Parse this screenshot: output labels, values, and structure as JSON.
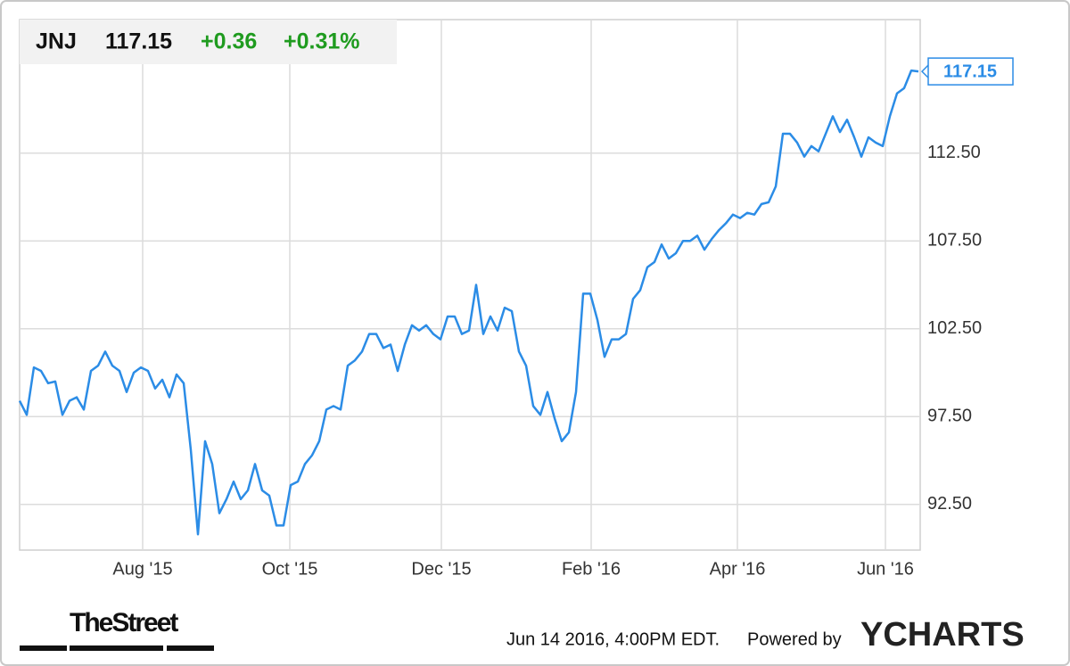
{
  "header": {
    "symbol": "JNJ",
    "price": "117.15",
    "change": "+0.36",
    "change_pct": "+0.31%"
  },
  "chart_data": {
    "type": "line",
    "color": "#2b8ce6",
    "grid": true,
    "values": [
      98.4,
      97.6,
      100.3,
      100.1,
      99.4,
      99.5,
      97.6,
      98.4,
      98.6,
      97.9,
      100.1,
      100.4,
      101.2,
      100.4,
      100.1,
      98.9,
      100.0,
      100.3,
      100.1,
      99.1,
      99.6,
      98.6,
      99.9,
      99.4,
      95.6,
      90.8,
      96.1,
      94.8,
      92.0,
      92.8,
      93.8,
      92.8,
      93.3,
      94.8,
      93.3,
      93.0,
      91.3,
      91.3,
      93.6,
      93.8,
      94.8,
      95.3,
      96.1,
      97.9,
      98.1,
      97.9,
      100.4,
      100.7,
      101.2,
      102.2,
      102.2,
      101.4,
      101.6,
      100.1,
      101.6,
      102.7,
      102.4,
      102.7,
      102.2,
      101.9,
      103.2,
      103.2,
      102.2,
      102.4,
      105.0,
      102.2,
      103.2,
      102.4,
      103.7,
      103.5,
      101.2,
      100.4,
      98.1,
      97.6,
      98.9,
      97.4,
      96.1,
      96.6,
      98.9,
      104.5,
      104.5,
      103.0,
      100.9,
      101.9,
      101.9,
      102.2,
      104.2,
      104.7,
      106.0,
      106.3,
      107.3,
      106.5,
      106.8,
      107.5,
      107.5,
      107.8,
      107.0,
      107.6,
      108.1,
      108.5,
      109.0,
      108.8,
      109.1,
      109.0,
      109.6,
      109.7,
      110.6,
      113.6,
      113.6,
      113.1,
      112.3,
      112.9,
      112.6,
      113.6,
      114.6,
      113.7,
      114.4,
      113.4,
      112.3,
      113.4,
      113.1,
      112.9,
      114.6,
      115.9,
      116.2,
      117.2,
      117.15
    ],
    "xlim": [
      0,
      126.25
    ],
    "xticks": [
      {
        "value": 17.25,
        "label": "Aug '15"
      },
      {
        "value": 37.875,
        "label": "Oct '15"
      },
      {
        "value": 59.125,
        "label": "Dec '15"
      },
      {
        "value": 80.125,
        "label": "Feb '16"
      },
      {
        "value": 100.625,
        "label": "Apr '16"
      },
      {
        "value": 121.375,
        "label": "Jun '16"
      }
    ],
    "ylim": [
      89.9,
      120.1
    ],
    "yticks": [
      {
        "value": 92.5,
        "label": "92.50"
      },
      {
        "value": 97.5,
        "label": "97.50"
      },
      {
        "value": 102.5,
        "label": "102.50"
      },
      {
        "value": 107.5,
        "label": "107.50"
      },
      {
        "value": 112.5,
        "label": "112.50"
      }
    ]
  },
  "footer": {
    "brand": "TheStreet",
    "timestamp": "Jun 14 2016, 4:00PM EDT.",
    "powered": "Powered by",
    "logo": "YCHARTS"
  }
}
